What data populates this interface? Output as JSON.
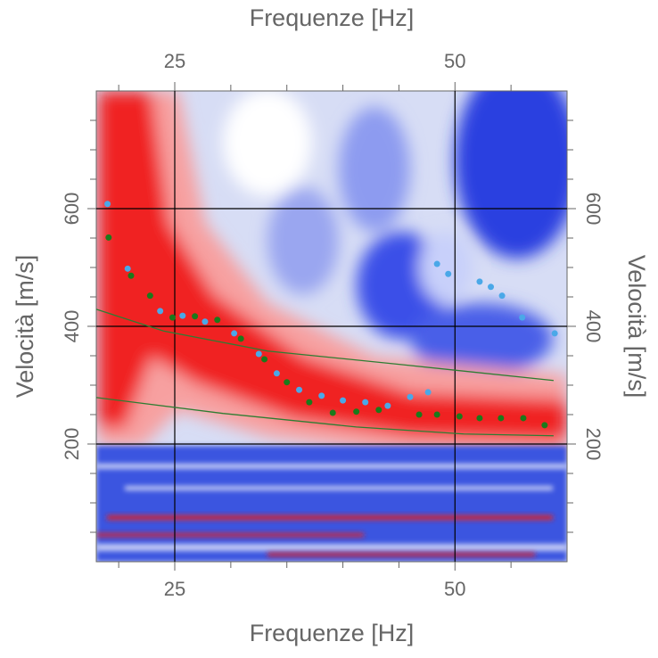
{
  "chart_data": {
    "type": "scatter",
    "x_label": "Frequenze [Hz]",
    "y_label": "Velocità [m/s]",
    "xlim": [
      18,
      60
    ],
    "ylim": [
      0,
      800
    ],
    "xticks": [
      25,
      50
    ],
    "yticks": [
      200,
      400,
      600
    ],
    "xminorticks": [
      20,
      30,
      35,
      40,
      45,
      55
    ],
    "yminorticks": [
      50,
      100,
      150,
      250,
      300,
      350,
      450,
      500,
      550,
      650,
      700,
      750
    ],
    "grid": true,
    "series": [
      {
        "color": "#1b7a1b",
        "mode": "markers",
        "x": [
          19.1,
          21.1,
          22.8,
          24.8,
          26.8,
          28.8,
          30.9,
          33.0,
          35.0,
          37.0,
          39.1,
          41.2,
          43.2,
          46.8,
          48.4,
          50.4,
          52.2,
          54.1,
          56.1,
          58.0
        ],
        "values": [
          551,
          486,
          452,
          415,
          417,
          411,
          379,
          344,
          305,
          271,
          253,
          255,
          258,
          250,
          250,
          247,
          244,
          244,
          244,
          232
        ]
      },
      {
        "color": "#4aa8e8",
        "mode": "markers",
        "x": [
          19.0,
          20.8,
          23.7,
          25.7,
          27.7,
          30.3,
          32.5,
          34.1,
          36.1,
          38.1,
          40.0,
          42.0,
          44.0,
          46.0,
          47.6,
          48.4,
          49.4,
          52.2,
          53.2,
          54.2,
          56.0,
          58.9
        ],
        "values": [
          608,
          498,
          426,
          418,
          408,
          388,
          353,
          320,
          292,
          282,
          274,
          271,
          265,
          280,
          288,
          506,
          489,
          476,
          467,
          452,
          415,
          388
        ]
      },
      {
        "color": "#2e7d32",
        "mode": "line",
        "x": [
          18,
          24,
          33.3,
          45.2,
          58.8
        ],
        "values": [
          429,
          392,
          358,
          335,
          308
        ]
      },
      {
        "color": "#2e7d32",
        "mode": "line",
        "x": [
          18,
          29.3,
          41.2,
          50.8,
          58.8
        ],
        "values": [
          279,
          252,
          229,
          217,
          214
        ]
      }
    ]
  }
}
